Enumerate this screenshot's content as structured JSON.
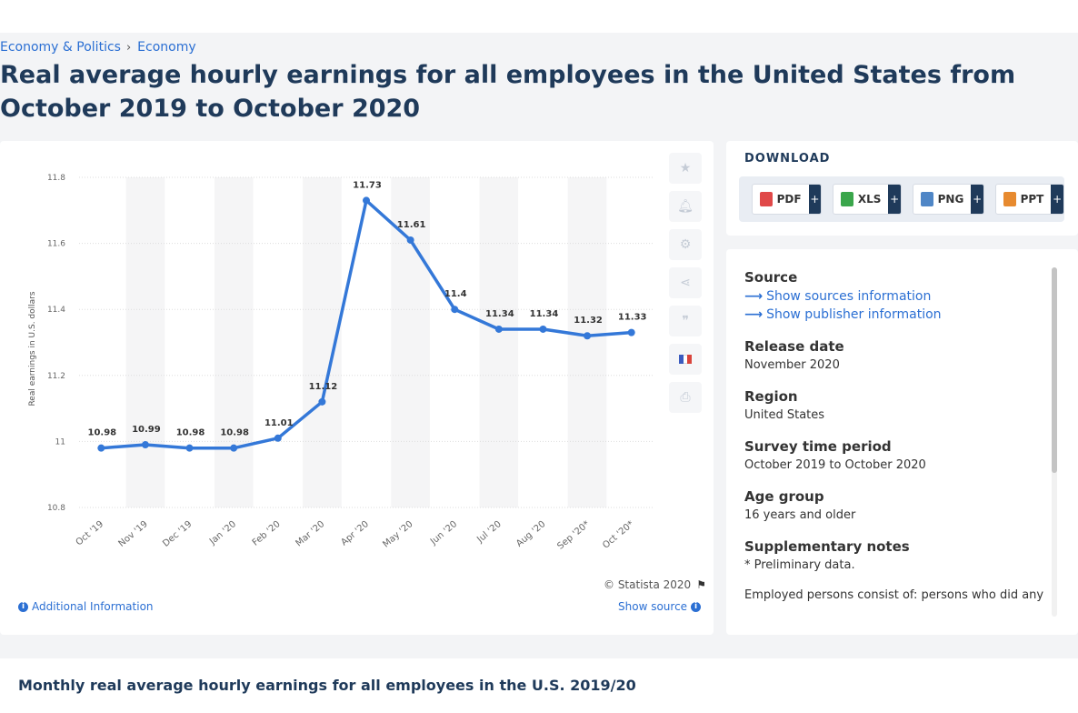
{
  "breadcrumb": {
    "item1": "Economy & Politics",
    "separator": "›",
    "item2": "Economy"
  },
  "title": "Real average hourly earnings for all employees in the United States from October 2019 to October 2020",
  "chart_data": {
    "type": "line",
    "title": "",
    "xlabel": "",
    "ylabel": "Real earnings in U.S. dollars",
    "categories": [
      "Oct '19",
      "Nov '19",
      "Dec '19",
      "Jan '20",
      "Feb '20",
      "Mar '20",
      "Apr '20",
      "May '20",
      "Jun '20",
      "Jul '20",
      "Aug '20",
      "Sep '20*",
      "Oct '20*"
    ],
    "values": [
      10.98,
      10.99,
      10.98,
      10.98,
      11.01,
      11.12,
      11.73,
      11.61,
      11.4,
      11.34,
      11.34,
      11.32,
      11.33
    ],
    "value_labels": [
      "10.98",
      "10.99",
      "10.98",
      "10.98",
      "11.01",
      "11.12",
      "11.73",
      "11.61",
      "11.4",
      "11.34",
      "11.34",
      "11.32",
      "11.33"
    ],
    "ylim": [
      10.8,
      11.8
    ],
    "yticks": [
      10.8,
      11,
      11.2,
      11.4,
      11.6,
      11.8
    ],
    "ytick_labels": [
      "10.8",
      "11",
      "11.2",
      "11.4",
      "11.6",
      "11.8"
    ],
    "grid": true,
    "line_color": "#3478d8"
  },
  "chart_footer": {
    "copyright": "© Statista 2020",
    "additional_info": "Additional Information",
    "show_source": "Show source"
  },
  "tools": [
    "star-icon",
    "bell-icon",
    "gear-icon",
    "share-icon",
    "quote-icon",
    "flag-france-icon",
    "print-icon"
  ],
  "download": {
    "title": "DOWNLOAD",
    "buttons": [
      {
        "label": "PDF",
        "plus": "+",
        "color": "#e04848"
      },
      {
        "label": "XLS",
        "plus": "+",
        "color": "#3aa64b"
      },
      {
        "label": "PNG",
        "plus": "+",
        "color": "#4f86c6"
      },
      {
        "label": "PPT",
        "plus": "+",
        "color": "#e78a2f"
      }
    ]
  },
  "info": {
    "source_h": "Source",
    "show_sources": "Show sources information",
    "show_publisher": "Show publisher information",
    "release_h": "Release date",
    "release_v": "November 2020",
    "region_h": "Region",
    "region_v": "United States",
    "survey_h": "Survey time period",
    "survey_v": "October 2019 to October 2020",
    "age_h": "Age group",
    "age_v": "16 years and older",
    "notes_h": "Supplementary notes",
    "notes_v": "* Preliminary data.",
    "notes_v2": "Employed persons consist of: persons who did any"
  },
  "bottom": {
    "title": "Monthly real average hourly earnings for all employees in the U.S. 2019/20"
  }
}
